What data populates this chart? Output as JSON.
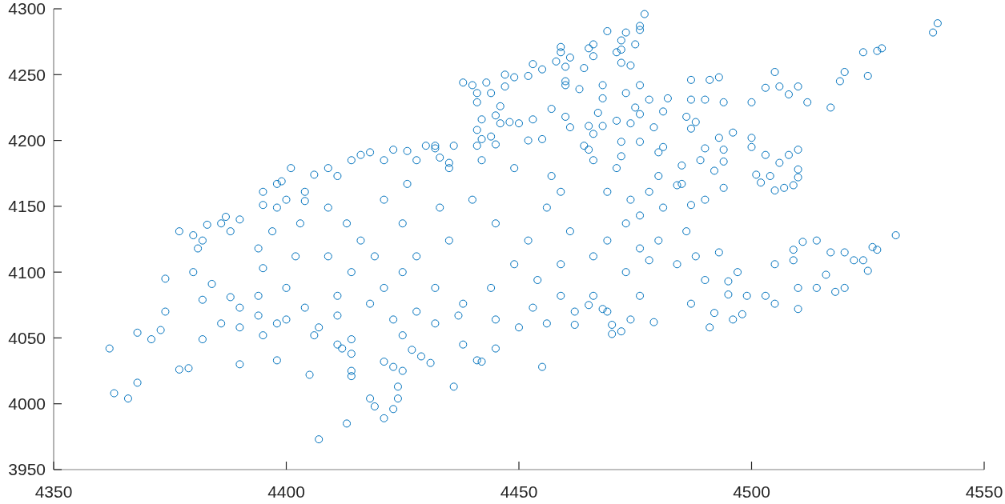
{
  "chart_data": {
    "type": "scatter",
    "x": [
      4362,
      4363,
      4366,
      4368,
      4368,
      4374,
      4374,
      4377,
      4379,
      4390,
      4398,
      4407,
      4405,
      4371,
      4373,
      4380,
      4409,
      4406,
      4399,
      4398,
      4387,
      4383,
      4395,
      4404,
      4413,
      4421,
      4418,
      4419,
      4424,
      4424,
      4423,
      4436,
      4455,
      4414,
      4414,
      4421,
      4423,
      4425,
      4431,
      4441,
      4442,
      4445,
      4438,
      4462,
      4470,
      4472,
      4470,
      4478,
      4465,
      4468,
      4479,
      4414,
      4412,
      4429,
      4427,
      4491,
      4496,
      4498,
      4510,
      4492,
      4525,
      4520,
      4518,
      4516,
      4514,
      4510,
      4505,
      4503,
      4499,
      4495,
      4495,
      4497,
      4505,
      4509,
      4522,
      4524,
      4540,
      4539,
      4528,
      4527,
      4524,
      4525,
      4520,
      4519,
      4517,
      4512,
      4510,
      4508,
      4505,
      4506,
      4503,
      4500,
      4487,
      4493,
      4491,
      4487,
      4494,
      4490,
      4496,
      4493,
      4486,
      4488,
      4487,
      4500,
      4490,
      4494,
      4494,
      4489,
      4485,
      4492,
      4494,
      4490,
      4487,
      4484,
      4500,
      4510,
      4508,
      4503,
      4501,
      4502,
      4505,
      4507,
      4509,
      4510,
      4510,
      4506,
      4504,
      4531,
      4514,
      4511,
      4509,
      4527,
      4526,
      4486,
      4517,
      4520,
      4493,
      4477,
      4476,
      4476,
      4469,
      4473,
      4475,
      4472,
      4472,
      4471,
      4472,
      4474,
      4466,
      4465,
      4466,
      4464,
      4459,
      4459,
      4458,
      4460,
      4461,
      4453,
      4455,
      4452,
      4447,
      4449,
      4447,
      4438,
      4440,
      4443,
      4441,
      4444,
      4441,
      4446,
      4445,
      4442,
      4468,
      4476,
      4460,
      4473,
      4478,
      4482,
      4481,
      4475,
      4476,
      4467,
      4465,
      4471,
      4474,
      4479,
      4468,
      4466,
      4472,
      4476,
      4481,
      4480,
      4472,
      4465,
      4460,
      4463,
      4468,
      4457,
      4460,
      4461,
      4464,
      4453,
      4450,
      4448,
      4446,
      4455,
      4452,
      4441,
      4442,
      4441,
      4432,
      4430,
      4423,
      4416,
      4436,
      4435,
      4433,
      4426,
      4377,
      4381,
      4382,
      4386,
      4388,
      4390,
      4380,
      4384,
      4388,
      4390,
      4382,
      4386,
      4382,
      4390,
      4394,
      4395,
      4394,
      4395,
      4394,
      4397,
      4398,
      4400,
      4404,
      4395,
      4401,
      4403,
      4402,
      4400,
      4404,
      4407,
      4411,
      4414,
      4411,
      4406,
      4400,
      4398,
      4411,
      4414,
      4418,
      4421,
      4409,
      4413,
      4416,
      4419,
      4414,
      4409,
      4411,
      4418,
      4421,
      4425,
      4428,
      4425,
      4421,
      4426,
      4428,
      4432,
      4435,
      4433,
      4435,
      4432,
      4428,
      4423,
      4425,
      4432,
      4437,
      4438,
      4440,
      4442,
      4444,
      4445,
      4449,
      4445,
      4449,
      4444,
      4445,
      4450,
      4453,
      4454,
      4452,
      4456,
      4457,
      4459,
      4461,
      4459,
      4459,
      4462,
      4456,
      4466,
      4469,
      4469,
      4466,
      4471,
      4474,
      4476,
      4473,
      4478,
      4480,
      4481,
      4480,
      4476,
      4473,
      4476,
      4474,
      4469,
      4466,
      4485,
      4484,
      4488,
      4490,
      4487
    ],
    "values": [
      4042,
      4008,
      4004,
      4016,
      4054,
      4095,
      4070,
      4026,
      4027,
      4030,
      4033,
      3973,
      4022,
      4049,
      4056,
      4128,
      4179,
      4174,
      4169,
      4167,
      4142,
      4136,
      4151,
      4154,
      3985,
      3989,
      4004,
      3998,
      4013,
      4004,
      3996,
      4013,
      4028,
      4025,
      4021,
      4032,
      4028,
      4025,
      4031,
      4033,
      4032,
      4042,
      4045,
      4060,
      4053,
      4055,
      4060,
      4109,
      4075,
      4072,
      4062,
      4038,
      4042,
      4036,
      4041,
      4058,
      4064,
      4068,
      4072,
      4069,
      4101,
      4088,
      4085,
      4098,
      4088,
      4088,
      4076,
      4082,
      4082,
      4083,
      4093,
      4100,
      4106,
      4109,
      4109,
      4109,
      4289,
      4282,
      4270,
      4268,
      4267,
      4249,
      4252,
      4245,
      4225,
      4229,
      4241,
      4235,
      4252,
      4241,
      4240,
      4229,
      4246,
      4248,
      4246,
      4231,
      4229,
      4231,
      4206,
      4202,
      4218,
      4214,
      4209,
      4202,
      4194,
      4193,
      4184,
      4185,
      4181,
      4177,
      4164,
      4155,
      4151,
      4166,
      4195,
      4193,
      4189,
      4189,
      4174,
      4168,
      4162,
      4164,
      4166,
      4172,
      4178,
      4183,
      4173,
      4128,
      4124,
      4123,
      4117,
      4117,
      4119,
      4131,
      4115,
      4115,
      4115,
      4296,
      4287,
      4284,
      4283,
      4282,
      4273,
      4276,
      4269,
      4267,
      4259,
      4257,
      4273,
      4270,
      4264,
      4255,
      4271,
      4267,
      4260,
      4256,
      4263,
      4258,
      4254,
      4249,
      4250,
      4248,
      4241,
      4244,
      4242,
      4244,
      4236,
      4236,
      4229,
      4226,
      4219,
      4216,
      4242,
      4242,
      4245,
      4236,
      4231,
      4232,
      4222,
      4225,
      4220,
      4221,
      4211,
      4215,
      4213,
      4210,
      4211,
      4205,
      4199,
      4199,
      4195,
      4191,
      4188,
      4193,
      4242,
      4239,
      4232,
      4224,
      4218,
      4210,
      4196,
      4216,
      4213,
      4214,
      4213,
      4201,
      4200,
      4208,
      4201,
      4196,
      4196,
      4196,
      4193,
      4189,
      4196,
      4183,
      4187,
      4192,
      4131,
      4118,
      4124,
      4137,
      4131,
      4140,
      4100,
      4091,
      4081,
      4073,
      4079,
      4061,
      4049,
      4058,
      4067,
      4052,
      4082,
      4103,
      4118,
      4131,
      4149,
      4155,
      4161,
      4161,
      4179,
      4137,
      4112,
      4088,
      4073,
      4058,
      4067,
      4049,
      4045,
      4052,
      4064,
      4061,
      4173,
      4185,
      4191,
      4185,
      4149,
      4137,
      4124,
      4112,
      4100,
      4112,
      4082,
      4076,
      4088,
      4100,
      4112,
      4137,
      4155,
      4167,
      4185,
      4194,
      4179,
      4149,
      4124,
      4088,
      4070,
      4064,
      4052,
      4061,
      4067,
      4076,
      4155,
      4185,
      4203,
      4197,
      4179,
      4137,
      4106,
      4088,
      4064,
      4058,
      4073,
      4094,
      4124,
      4149,
      4173,
      4161,
      4131,
      4106,
      4082,
      4070,
      4061,
      4112,
      4124,
      4161,
      4185,
      4179,
      4155,
      4143,
      4137,
      4161,
      4173,
      4149,
      4124,
      4118,
      4100,
      4082,
      4064,
      4070,
      4082,
      4167,
      4106,
      4112,
      4094,
      4076
    ],
    "color": "#0072bd",
    "marker": "circle",
    "xlim": [
      4350,
      4550
    ],
    "xticks": [
      4350,
      4400,
      4450,
      4500,
      4550
    ],
    "ylim": [
      3950,
      4300
    ],
    "yticks": [
      3950,
      4000,
      4050,
      4100,
      4150,
      4200,
      4250,
      4300
    ]
  }
}
